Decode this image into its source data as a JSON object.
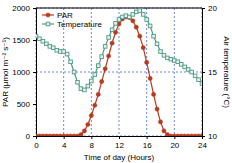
{
  "chart_data": {
    "type": "line",
    "x_label": "Time of day (Hours)",
    "y_label": "PAR (µmol m⁻² s⁻¹)",
    "y2_label": "Air temperature (°C)",
    "x": [
      0,
      0.5,
      1,
      1.5,
      2,
      2.5,
      3,
      3.5,
      4,
      4.5,
      5,
      5.5,
      6,
      6.5,
      7,
      7.5,
      8,
      8.5,
      9,
      9.5,
      10,
      10.5,
      11,
      11.5,
      12,
      12.5,
      13,
      13.5,
      14,
      14.5,
      15,
      15.5,
      16,
      16.5,
      17,
      17.5,
      18,
      18.5,
      19,
      19.5,
      20,
      20.5,
      21,
      21.5,
      22,
      22.5,
      23,
      23.5,
      24
    ],
    "series": [
      {
        "name": "PAR",
        "color": "#b83a1e",
        "marker": "circle",
        "line_style": "solid",
        "values": [
          0,
          0,
          0,
          0,
          0,
          0,
          0,
          0,
          0,
          0,
          0,
          0,
          0,
          20,
          80,
          180,
          320,
          480,
          650,
          850,
          1050,
          1250,
          1450,
          1620,
          1750,
          1830,
          1860,
          1850,
          1800,
          1700,
          1560,
          1380,
          1150,
          900,
          650,
          420,
          220,
          80,
          20,
          0,
          0,
          0,
          0,
          0,
          0,
          0,
          0,
          0,
          0
        ]
      },
      {
        "name": "Temperature",
        "color": "#4e9a86",
        "marker": "square",
        "line_style": "solid",
        "axis": "y2",
        "values": [
          17.8,
          17.6,
          17.4,
          17.2,
          17.0,
          16.9,
          16.7,
          16.6,
          16.6,
          16.4,
          15.8,
          15.0,
          14.2,
          13.7,
          13.6,
          13.9,
          14.3,
          14.8,
          15.5,
          16.2,
          17.0,
          17.7,
          18.3,
          18.8,
          19.1,
          19.3,
          19.4,
          19.3,
          19.5,
          19.7,
          19.8,
          19.5,
          19.1,
          18.6,
          17.8,
          17.2,
          16.6,
          16.3,
          16.1,
          16.0,
          15.9,
          15.8,
          15.6,
          15.4,
          15.2,
          15.0,
          14.7,
          14.4,
          14.1
        ]
      }
    ],
    "xlim": [
      0,
      24
    ],
    "xticks": [
      0,
      4,
      8,
      12,
      16,
      20,
      24
    ],
    "ylim": [
      0,
      2000
    ],
    "yticks": [
      0,
      500,
      1000,
      1500,
      2000
    ],
    "y2lim": [
      10,
      20
    ],
    "y2ticks": [
      10,
      15,
      20
    ],
    "grid": true,
    "legend": "upper left"
  }
}
